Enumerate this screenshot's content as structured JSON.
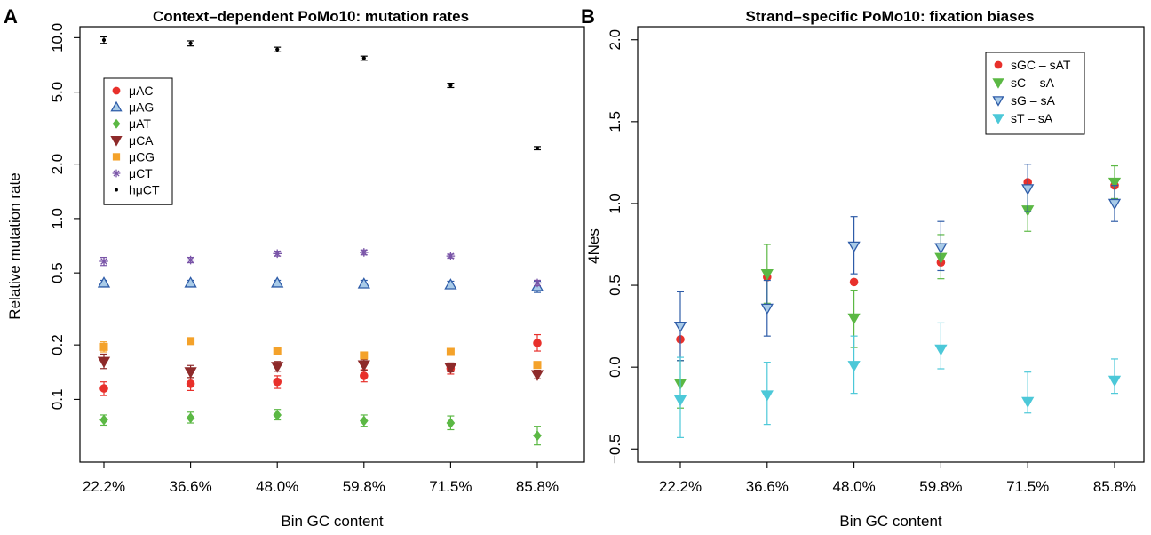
{
  "chart_data": [
    {
      "panel_label": "A",
      "type": "scatter",
      "title": "Context–dependent PoMo10: mutation rates",
      "xlabel": "Bin GC content",
      "ylabel": "Relative mutation rate",
      "y_scale": "log",
      "ylim": [
        0.045,
        11.5
      ],
      "y_ticks": [
        0.1,
        0.2,
        0.5,
        1.0,
        2.0,
        5.0,
        10.0
      ],
      "y_tick_labels": [
        "0.1",
        "0.2",
        "0.5",
        "1.0",
        "2.0",
        "5.0",
        "10.0"
      ],
      "categories": [
        "22.2%",
        "36.6%",
        "48.0%",
        "59.8%",
        "71.5%",
        "85.8%"
      ],
      "legend_position": "top-left",
      "grid": false,
      "series": [
        {
          "name": "μAC",
          "marker": "circle",
          "color": "#e8302b",
          "values": [
            0.115,
            0.122,
            0.125,
            0.135,
            0.148,
            0.205
          ],
          "err_low": [
            0.105,
            0.112,
            0.115,
            0.125,
            0.138,
            0.185
          ],
          "err_high": [
            0.125,
            0.132,
            0.135,
            0.146,
            0.158,
            0.228
          ]
        },
        {
          "name": "μAG",
          "marker": "triangle-up",
          "color": "#2e5ca8",
          "fill": "#a9cbe8",
          "values": [
            0.44,
            0.44,
            0.44,
            0.435,
            0.43,
            0.42
          ],
          "err_low": [
            0.425,
            0.425,
            0.425,
            0.415,
            0.41,
            0.39
          ],
          "err_high": [
            0.455,
            0.455,
            0.455,
            0.455,
            0.45,
            0.45
          ]
        },
        {
          "name": "μAT",
          "marker": "diamond",
          "color": "#5bb844",
          "values": [
            0.077,
            0.079,
            0.082,
            0.076,
            0.074,
            0.063
          ],
          "err_low": [
            0.072,
            0.074,
            0.077,
            0.071,
            0.068,
            0.056
          ],
          "err_high": [
            0.082,
            0.085,
            0.088,
            0.082,
            0.081,
            0.071
          ]
        },
        {
          "name": "μCA",
          "marker": "triangle-down",
          "color": "#8e2a2a",
          "values": [
            0.162,
            0.142,
            0.152,
            0.155,
            0.15,
            0.137
          ],
          "err_low": [
            0.148,
            0.132,
            0.143,
            0.145,
            0.142,
            0.13
          ],
          "err_high": [
            0.178,
            0.154,
            0.162,
            0.166,
            0.159,
            0.145
          ]
        },
        {
          "name": "μCG",
          "marker": "square",
          "color": "#f4a22a",
          "values": [
            0.195,
            0.21,
            0.185,
            0.175,
            0.183,
            0.155
          ],
          "err_low": [
            0.183,
            0.202,
            0.178,
            0.169,
            0.178,
            0.151
          ],
          "err_high": [
            0.208,
            0.219,
            0.192,
            0.181,
            0.188,
            0.16
          ]
        },
        {
          "name": "μCT",
          "marker": "star",
          "color": "#7a55a8",
          "values": [
            0.58,
            0.59,
            0.64,
            0.65,
            0.62,
            0.44
          ],
          "err_low": [
            0.55,
            0.57,
            0.62,
            0.63,
            0.605,
            0.425
          ],
          "err_high": [
            0.61,
            0.61,
            0.66,
            0.67,
            0.635,
            0.455
          ]
        },
        {
          "name": "hμCT",
          "marker": "dot",
          "color": "#000000",
          "values": [
            9.7,
            9.3,
            8.6,
            7.7,
            5.45,
            2.45
          ],
          "err_low": [
            9.3,
            9.0,
            8.35,
            7.5,
            5.3,
            2.4
          ],
          "err_high": [
            10.1,
            9.6,
            8.85,
            7.9,
            5.6,
            2.5
          ]
        }
      ]
    },
    {
      "panel_label": "B",
      "type": "scatter",
      "title": "Strand–specific PoMo10: fixation biases",
      "xlabel": "Bin GC content",
      "ylabel": "4Nes",
      "ylim": [
        -0.58,
        2.08
      ],
      "y_ticks": [
        -0.5,
        0.0,
        0.5,
        1.0,
        1.5,
        2.0
      ],
      "y_tick_labels": [
        "−0.5",
        "0.0",
        "0.5",
        "1.0",
        "1.5",
        "2.0"
      ],
      "categories": [
        "22.2%",
        "36.6%",
        "48.0%",
        "59.8%",
        "71.5%",
        "85.8%"
      ],
      "legend_position": "top-right",
      "grid": false,
      "series": [
        {
          "name": "sGC – sAT",
          "marker": "circle",
          "color": "#e8302b",
          "values": [
            0.17,
            0.55,
            0.52,
            0.64,
            1.13,
            1.11
          ],
          "err_low": null,
          "err_high": null
        },
        {
          "name": "sC – sA",
          "marker": "triangle-down",
          "color": "#5bb844",
          "values": [
            -0.1,
            0.57,
            0.3,
            0.67,
            0.96,
            1.13
          ],
          "err_low": [
            -0.25,
            0.39,
            0.12,
            0.54,
            0.83,
            1.03
          ],
          "err_high": [
            0.04,
            0.75,
            0.47,
            0.81,
            1.09,
            1.23
          ]
        },
        {
          "name": "sG – sA",
          "marker": "triangle-down",
          "color": "#2e5ca8",
          "fill": "#a9cbe8",
          "values": [
            0.25,
            0.36,
            0.74,
            0.73,
            1.09,
            1.0
          ],
          "err_low": [
            0.04,
            0.19,
            0.57,
            0.59,
            0.95,
            0.89
          ],
          "err_high": [
            0.46,
            0.53,
            0.92,
            0.89,
            1.24,
            1.11
          ]
        },
        {
          "name": "sT – sA",
          "marker": "triangle-down",
          "color": "#4cc8d8",
          "values": [
            -0.2,
            -0.17,
            0.01,
            0.11,
            -0.21,
            -0.08
          ],
          "err_low": [
            -0.43,
            -0.35,
            -0.16,
            -0.01,
            -0.28,
            -0.16
          ],
          "err_high": [
            0.06,
            0.03,
            0.19,
            0.27,
            -0.03,
            0.05
          ]
        }
      ]
    }
  ]
}
